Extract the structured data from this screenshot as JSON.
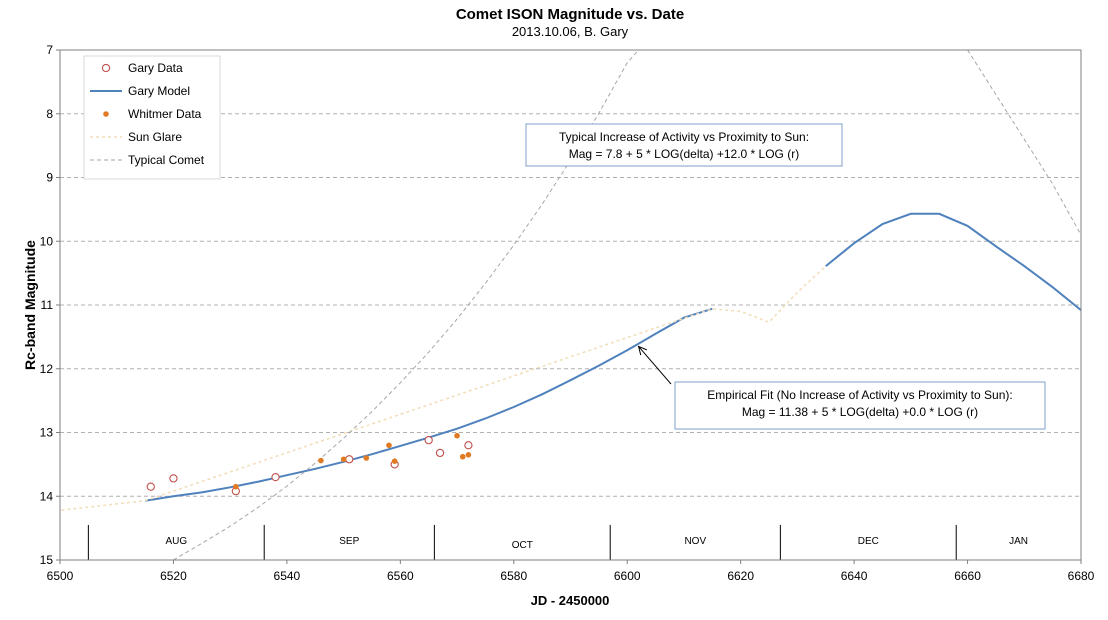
{
  "chart_data": {
    "type": "scatter",
    "title": "Comet ISON Magnitude  vs. Date",
    "subtitle": "2013.10.06, B. Gary",
    "xlabel": "JD - 2450000",
    "ylabel": "Rc-band Magnitude",
    "xlim": [
      6500,
      6680
    ],
    "ylim": [
      7,
      15
    ],
    "y_inverted": true,
    "grid": "horizontal",
    "legend_position": "top-left",
    "x_ticks": [
      6500,
      6520,
      6540,
      6560,
      6580,
      6600,
      6620,
      6640,
      6660,
      6680
    ],
    "y_ticks": [
      7,
      8,
      9,
      10,
      11,
      12,
      13,
      14,
      15
    ],
    "months": [
      {
        "label": "AUG",
        "start": 6505,
        "end": 6536
      },
      {
        "label": "SEP",
        "start": 6536,
        "end": 6566
      },
      {
        "label": "OCT",
        "start": 6566,
        "end": 6597
      },
      {
        "label": "NOV",
        "start": 6597,
        "end": 6627
      },
      {
        "label": "DEC",
        "start": 6627,
        "end": 6658
      },
      {
        "label": "JAN",
        "start": 6658,
        "end": 6680
      }
    ],
    "series": [
      {
        "name": "Gary Data",
        "style": "open-circle",
        "color": "#C0504D",
        "x": [
          6516,
          6520,
          6531,
          6538,
          6551,
          6559,
          6565,
          6567,
          6572
        ],
        "y": [
          13.85,
          13.72,
          13.92,
          13.7,
          13.42,
          13.5,
          13.12,
          13.32,
          13.2
        ]
      },
      {
        "name": "Gary Model",
        "style": "line",
        "color": "#4F81BD",
        "x": [
          6515,
          6520,
          6525,
          6530,
          6535,
          6540,
          6545,
          6550,
          6555,
          6560,
          6565,
          6570,
          6575,
          6580,
          6585,
          6590,
          6595,
          6600,
          6605,
          6610,
          6615
        ],
        "y": [
          14.07,
          14.0,
          13.94,
          13.86,
          13.77,
          13.67,
          13.57,
          13.46,
          13.34,
          13.21,
          13.08,
          12.94,
          12.78,
          12.6,
          12.4,
          12.18,
          11.95,
          11.71,
          11.45,
          11.2,
          11.06
        ]
      },
      {
        "name": "Gary Model (post-glare)",
        "style": "line",
        "color": "#4F81BD",
        "x": [
          6635,
          6640,
          6645,
          6650,
          6655,
          6660,
          6665,
          6670,
          6675,
          6680
        ],
        "y": [
          10.39,
          10.03,
          9.73,
          9.57,
          9.57,
          9.76,
          10.08,
          10.39,
          10.72,
          11.08
        ]
      },
      {
        "name": "Whitmer Data",
        "style": "filled-circle",
        "color": "#E07B24",
        "x": [
          6531,
          6546,
          6550,
          6554,
          6558,
          6559,
          6570,
          6571,
          6572
        ],
        "y": [
          13.85,
          13.44,
          13.42,
          13.4,
          13.2,
          13.45,
          13.05,
          13.38,
          13.35
        ]
      },
      {
        "name": "Sun Glare",
        "style": "dotted-line",
        "color": "#F2DDB8",
        "x": [
          6495,
          6505,
          6515,
          6615,
          6620,
          6625,
          6630,
          6635
        ],
        "y": [
          14.27,
          14.17,
          14.07,
          11.06,
          11.1,
          11.27,
          10.8,
          10.39
        ]
      },
      {
        "name": "Typical Comet",
        "style": "dashed-line",
        "color": "#A6A6A6",
        "x": [
          6520,
          6525,
          6530,
          6535,
          6540,
          6545,
          6550,
          6555,
          6560,
          6565,
          6570,
          6575,
          6580,
          6585,
          6590,
          6595,
          6600,
          6602
        ],
        "y": [
          15.0,
          14.74,
          14.47,
          14.17,
          13.84,
          13.48,
          13.09,
          12.67,
          12.22,
          11.74,
          11.22,
          10.66,
          10.06,
          9.42,
          8.73,
          7.99,
          7.2,
          7.0
        ]
      },
      {
        "name": "Typical Comet (post-perihelion)",
        "style": "dashed-line",
        "color": "#A6A6A6",
        "x": [
          6660,
          6665,
          6670,
          6675,
          6680
        ],
        "y": [
          7.0,
          7.7,
          8.4,
          9.1,
          9.9
        ]
      }
    ],
    "legend": [
      {
        "label": "Gary Data",
        "style": "open-circle",
        "color": "#C0504D"
      },
      {
        "label": "Gary Model",
        "style": "line",
        "color": "#4F81BD"
      },
      {
        "label": "Whitmer Data",
        "style": "filled-circle",
        "color": "#E07B24"
      },
      {
        "label": "Sun Glare",
        "style": "dotted-line",
        "color": "#F2DDB8"
      },
      {
        "label": "Typical Comet",
        "style": "dashed-line",
        "color": "#A6A6A6"
      }
    ],
    "annotations": [
      {
        "id": "typical",
        "lines": [
          "Typical Increase of Activity vs Proximity to Sun:",
          "Mag = 7.8 + 5 * LOG(delta) +12.0 * LOG (r)"
        ]
      },
      {
        "id": "empirical",
        "lines": [
          "Empirical Fit (No Increase of Activity vs Proximity to Sun):",
          "Mag = 11.38 + 5 * LOG(delta) +0.0 * LOG (r)"
        ],
        "arrow_to": {
          "x": 6602,
          "y": 11.65
        }
      }
    ]
  }
}
